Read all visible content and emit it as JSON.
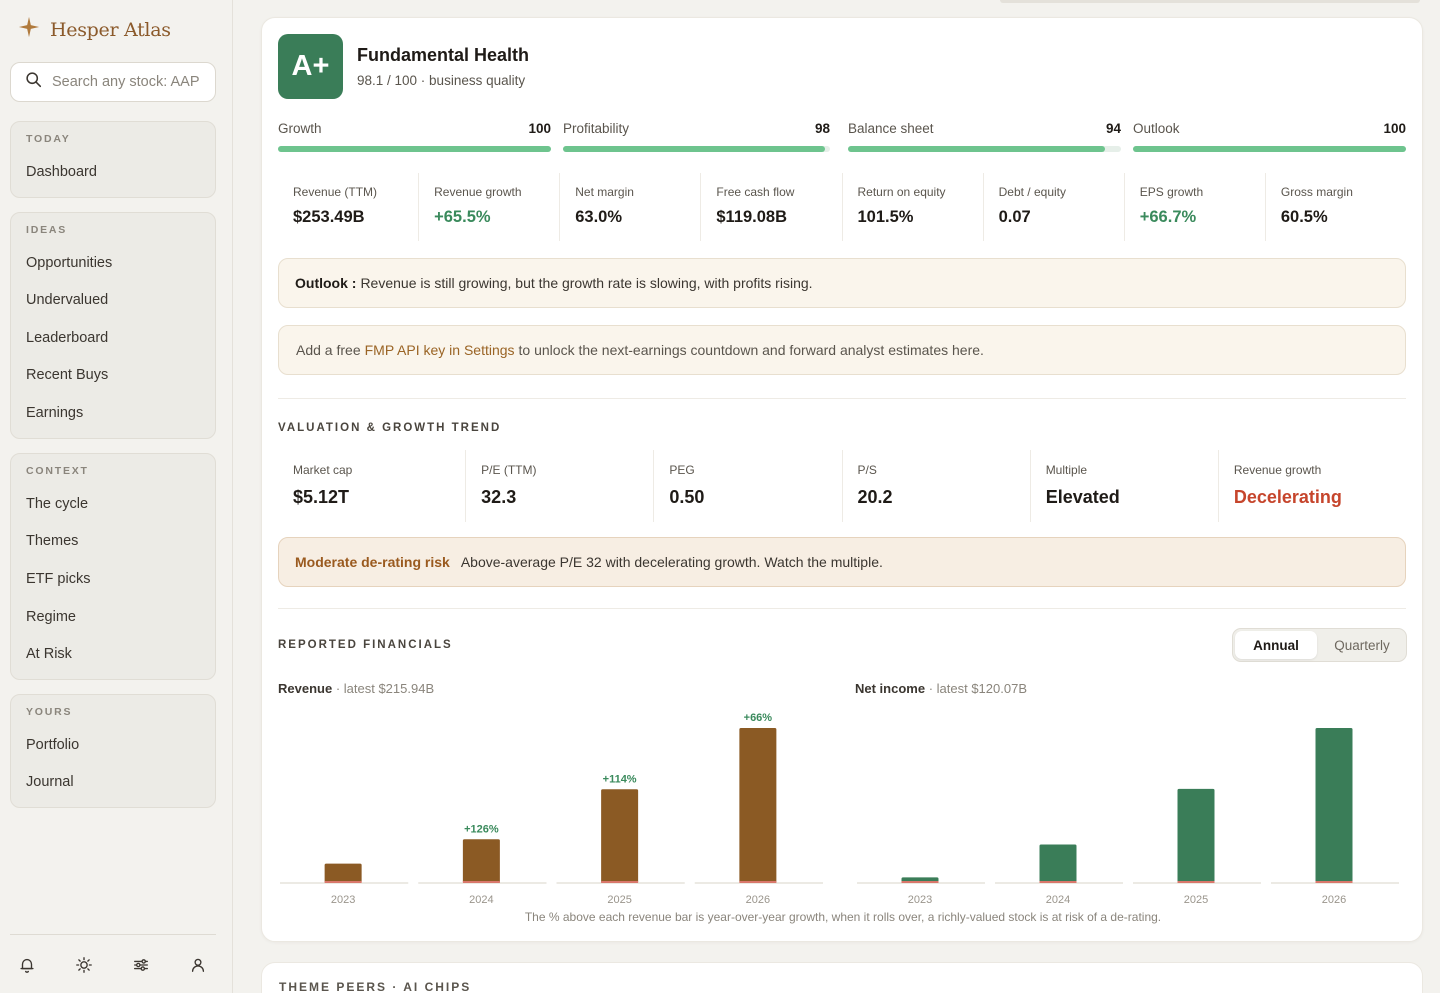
{
  "sidebar": {
    "brand": "Hesper Atlas",
    "search_placeholder": "Search any stock: AAP",
    "groups": [
      {
        "title": "TODAY",
        "items": [
          "Dashboard"
        ]
      },
      {
        "title": "IDEAS",
        "items": [
          "Opportunities",
          "Undervalued",
          "Leaderboard",
          "Recent Buys",
          "Earnings"
        ]
      },
      {
        "title": "CONTEXT",
        "items": [
          "The cycle",
          "Themes",
          "ETF picks",
          "Regime",
          "At Risk"
        ]
      },
      {
        "title": "YOURS",
        "items": [
          "Portfolio",
          "Journal"
        ]
      }
    ],
    "footer_icons": [
      "bell-icon",
      "sun-icon",
      "sliders-icon",
      "user-icon"
    ]
  },
  "health": {
    "grade": "A+",
    "title": "Fundamental Health",
    "subtitle": "98.1 / 100 · business quality",
    "scores": [
      {
        "label": "Growth",
        "value": "100",
        "level": 100
      },
      {
        "label": "Profitability",
        "value": "98",
        "level": 98
      },
      {
        "label": "Balance sheet",
        "value": "94",
        "level": 94
      },
      {
        "label": "Outlook",
        "value": "100",
        "level": 100
      }
    ],
    "metrics": [
      {
        "label": "Revenue (TTM)",
        "value": "$253.49B",
        "tone": "neutral"
      },
      {
        "label": "Revenue growth",
        "value": "+65.5%",
        "tone": "green"
      },
      {
        "label": "Net margin",
        "value": "63.0%",
        "tone": "neutral"
      },
      {
        "label": "Free cash flow",
        "value": "$119.08B",
        "tone": "neutral"
      },
      {
        "label": "Return on equity",
        "value": "101.5%",
        "tone": "neutral"
      },
      {
        "label": "Debt / equity",
        "value": "0.07",
        "tone": "neutral"
      },
      {
        "label": "EPS growth",
        "value": "+66.7%",
        "tone": "green"
      },
      {
        "label": "Gross margin",
        "value": "60.5%",
        "tone": "neutral"
      }
    ],
    "outlook_label": "Outlook :",
    "outlook_text": "Revenue is still growing, but the growth rate is slowing, with profits rising.",
    "api_prefix": "Add a free",
    "api_link": "FMP API key in Settings",
    "api_suffix": "to unlock the next-earnings countdown and forward analyst estimates here."
  },
  "valuation": {
    "title": "VALUATION & GROWTH TREND",
    "metrics": [
      {
        "label": "Market cap",
        "value": "$5.12T",
        "tone": "neutral"
      },
      {
        "label": "P/E (TTM)",
        "value": "32.3",
        "tone": "neutral"
      },
      {
        "label": "PEG",
        "value": "0.50",
        "tone": "neutral"
      },
      {
        "label": "P/S",
        "value": "20.2",
        "tone": "neutral"
      },
      {
        "label": "Multiple",
        "value": "Elevated",
        "tone": "neutral"
      },
      {
        "label": "Revenue growth",
        "value": "Decelerating",
        "tone": "red"
      }
    ],
    "risk_label": "Moderate de-rating risk",
    "risk_text": "Above-average P/E 32 with decelerating growth. Watch the multiple."
  },
  "financials": {
    "title": "REPORTED FINANCIALS",
    "toggle": {
      "annual": "Annual",
      "quarterly": "Quarterly",
      "selected": "Annual"
    },
    "footnote": "The % above each revenue bar is year-over-year growth, when it rolls over, a richly-valued stock is at risk of a de-rating."
  },
  "chart_data": [
    {
      "type": "bar",
      "title": "Revenue",
      "subtitle": "· latest $215.94B",
      "categories": [
        "2023",
        "2024",
        "2025",
        "2026"
      ],
      "values": [
        27.0,
        60.9,
        130.5,
        215.9
      ],
      "growth_labels": [
        "",
        "+126%",
        "+114%",
        "+66%"
      ],
      "color": "#8b5a24"
    },
    {
      "type": "bar",
      "title": "Net income",
      "subtitle": "· latest $120.07B",
      "categories": [
        "2023",
        "2024",
        "2025",
        "2026"
      ],
      "values": [
        4.4,
        29.8,
        72.9,
        120.1
      ],
      "growth_labels": [
        "",
        "",
        "",
        ""
      ],
      "color": "#3a7d58"
    }
  ],
  "next_section": {
    "title": "THEME PEERS · AI CHIPS"
  },
  "colors": {
    "accent": "#8b5a2b",
    "green": "#3a7d58",
    "bar_green": "#6ec48e",
    "red": "#c6452c"
  }
}
